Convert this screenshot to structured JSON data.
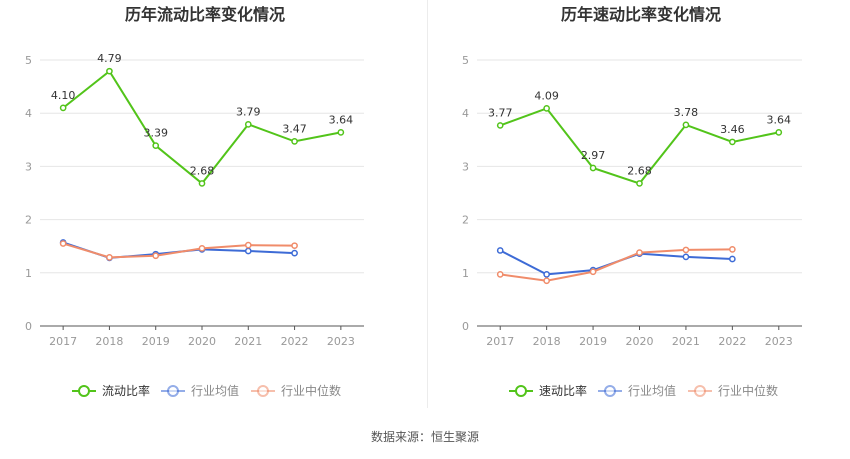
{
  "footer": {
    "source": "数据来源：恒生聚源"
  },
  "colors": {
    "main": "#52c41a",
    "avg": "#3d6bd6",
    "median": "#f08c6a",
    "grid": "#e6e6e6",
    "axis": "#999999"
  },
  "chart_data": [
    {
      "type": "line",
      "title": "历年流动比率变化情况",
      "categories": [
        "2017",
        "2018",
        "2019",
        "2020",
        "2021",
        "2022",
        "2023"
      ],
      "yticks": [
        "0",
        "1",
        "2",
        "3",
        "4",
        "5"
      ],
      "ylim": [
        0,
        5
      ],
      "grid": true,
      "legend_position": "bottom",
      "series": [
        {
          "name": "流动比率",
          "values": [
            4.1,
            4.79,
            3.39,
            2.68,
            3.79,
            3.47,
            3.64
          ],
          "labels": [
            "4.10",
            "4.79",
            "3.39",
            "2.68",
            "3.79",
            "3.47",
            "3.64"
          ],
          "color": "#52c41a"
        },
        {
          "name": "行业均值",
          "values": [
            1.57,
            1.28,
            1.35,
            1.44,
            1.41,
            1.37,
            null
          ],
          "color": "#3d6bd6"
        },
        {
          "name": "行业中位数",
          "values": [
            1.55,
            1.29,
            1.32,
            1.46,
            1.52,
            1.51,
            null
          ],
          "color": "#f08c6a"
        }
      ]
    },
    {
      "type": "line",
      "title": "历年速动比率变化情况",
      "categories": [
        "2017",
        "2018",
        "2019",
        "2020",
        "2021",
        "2022",
        "2023"
      ],
      "yticks": [
        "0",
        "1",
        "2",
        "3",
        "4",
        "5"
      ],
      "ylim": [
        0,
        5
      ],
      "grid": true,
      "legend_position": "bottom",
      "series": [
        {
          "name": "速动比率",
          "values": [
            3.77,
            4.09,
            2.97,
            2.68,
            3.78,
            3.46,
            3.64
          ],
          "labels": [
            "3.77",
            "4.09",
            "2.97",
            "2.68",
            "3.78",
            "3.46",
            "3.64"
          ],
          "color": "#52c41a"
        },
        {
          "name": "行业均值",
          "values": [
            1.42,
            0.97,
            1.05,
            1.36,
            1.3,
            1.26,
            null
          ],
          "color": "#3d6bd6"
        },
        {
          "name": "行业中位数",
          "values": [
            0.97,
            0.85,
            1.02,
            1.38,
            1.43,
            1.44,
            null
          ],
          "color": "#f08c6a"
        }
      ]
    }
  ]
}
